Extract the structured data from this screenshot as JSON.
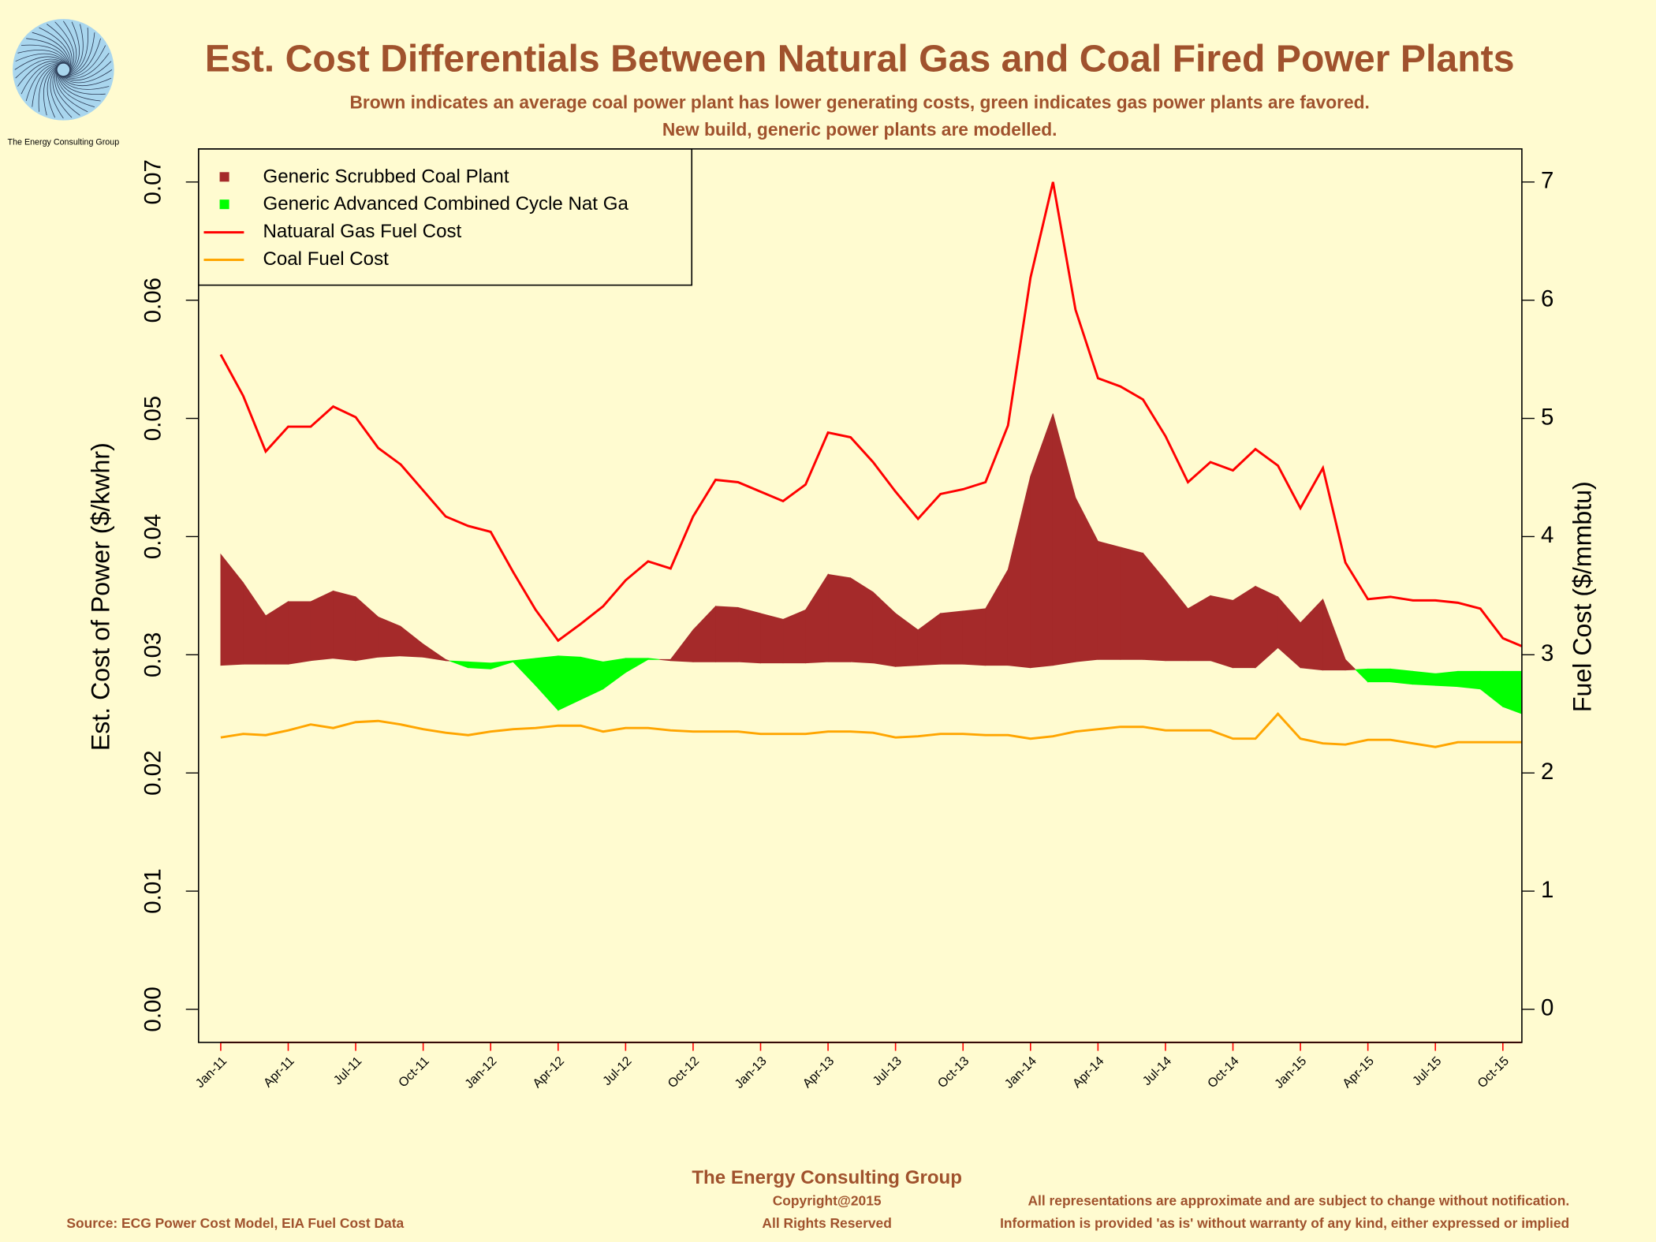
{
  "logo": {
    "text": "The Energy Consulting Group"
  },
  "chart_data": {
    "type": "area-difference",
    "title": "Est. Cost Differentials Between Natural Gas and Coal Fired Power Plants",
    "subtitle": [
      "Brown indicates an average coal power plant has lower generating costs, green indicates gas power plants are favored.",
      "New build, generic power plants are modelled."
    ],
    "ylabel": "Est. Cost of Power ($/kwhr)",
    "y2label": "Fuel Cost ($/mmbtu)",
    "legend": "topleft",
    "categories": [
      "Jan-11",
      null,
      null,
      "Apr-11",
      null,
      null,
      "Jul-11",
      null,
      null,
      "Oct-11",
      null,
      null,
      "Jan-12",
      null,
      null,
      "Apr-12",
      null,
      null,
      "Jul-12",
      null,
      null,
      "Oct-12",
      null,
      null,
      "Jan-13",
      null,
      null,
      "Apr-13",
      null,
      null,
      "Jul-13",
      null,
      null,
      "Oct-13",
      null,
      null,
      "Jan-14",
      null,
      null,
      "Apr-14",
      null,
      null,
      "Jul-14",
      null,
      null,
      "Oct-14",
      null,
      null,
      "Jan-15",
      null,
      null,
      "Apr-15",
      null,
      null,
      "Jul-15",
      null,
      null,
      "Oct-15",
      null
    ],
    "ylim": [
      -0.0028,
      0.0728
    ],
    "yticks": [
      {
        "value": 0,
        "label": "0.00"
      },
      0.01,
      0.02,
      0.03,
      0.04,
      0.05,
      0.06,
      0.07
    ],
    "y2lim": [
      -0.28,
      7.28
    ],
    "y2ticks": [
      0,
      1,
      2,
      3,
      4,
      5,
      6,
      7
    ],
    "series": [
      {
        "name": "Generic Scrubbed Coal Plant",
        "color": "#a52a2a",
        "values": [
          0.0291,
          0.0292,
          0.0292,
          0.0292,
          0.0295,
          0.0297,
          0.0295,
          0.0298,
          0.0299,
          0.0298,
          0.0295,
          0.0294,
          0.0293,
          0.0295,
          0.0297,
          0.0299,
          0.0298,
          0.0294,
          0.0297,
          0.0297,
          0.0295,
          0.0294,
          0.0294,
          0.0294,
          0.0293,
          0.0293,
          0.0293,
          0.0294,
          0.0294,
          0.0293,
          0.029,
          0.0291,
          0.0292,
          0.0292,
          0.0291,
          0.0291,
          0.0289,
          0.0291,
          0.0294,
          0.0296,
          0.0296,
          0.0296,
          0.0295,
          0.0295,
          0.0295,
          0.0289,
          0.0289,
          0.0306,
          0.0289,
          0.0287,
          0.0287,
          0.0288,
          0.0288,
          0.0286,
          0.0284,
          0.0286,
          0.0286,
          0.0286,
          0.0286
        ]
      },
      {
        "name": "Generic Advanced Combined Cycle Nat Ga",
        "color": "#00ff00",
        "values": [
          0.0385,
          0.0361,
          0.0333,
          0.0345,
          0.0345,
          0.0354,
          0.0349,
          0.0332,
          0.0324,
          0.0309,
          0.0296,
          0.0289,
          0.0288,
          0.0294,
          0.0274,
          0.0253,
          0.0262,
          0.0271,
          0.0285,
          0.0296,
          0.0296,
          0.0321,
          0.0341,
          0.034,
          0.0335,
          0.033,
          0.0338,
          0.0368,
          0.0365,
          0.0353,
          0.0335,
          0.0321,
          0.0335,
          0.0337,
          0.0339,
          0.0372,
          0.0451,
          0.0504,
          0.0433,
          0.0396,
          0.0391,
          0.0386,
          0.0363,
          0.0339,
          0.035,
          0.0346,
          0.0358,
          0.0349,
          0.0327,
          0.0347,
          0.0296,
          0.0277,
          0.0277,
          0.0275,
          0.0274,
          0.0273,
          0.0271,
          0.0256,
          0.0249
        ]
      },
      {
        "name": "Natuaral Gas Fuel Cost",
        "color": "#ff0000",
        "axis": "y2",
        "values": [
          5.54,
          5.19,
          4.72,
          4.93,
          4.93,
          5.1,
          5.01,
          4.75,
          4.61,
          4.39,
          4.17,
          4.09,
          4.04,
          3.7,
          3.38,
          3.12,
          3.26,
          3.41,
          3.63,
          3.79,
          3.73,
          4.17,
          4.48,
          4.46,
          4.38,
          4.3,
          4.44,
          4.88,
          4.84,
          4.63,
          4.38,
          4.15,
          4.36,
          4.4,
          4.46,
          4.94,
          6.19,
          7.0,
          5.92,
          5.34,
          5.27,
          5.16,
          4.85,
          4.46,
          4.63,
          4.56,
          4.74,
          4.6,
          4.24,
          4.58,
          3.78,
          3.47,
          3.49,
          3.46,
          3.46,
          3.44,
          3.39,
          3.14,
          3.06
        ]
      },
      {
        "name": "Coal Fuel Cost",
        "color": "#ffa500",
        "axis": "y2",
        "values": [
          2.3,
          2.33,
          2.32,
          2.36,
          2.41,
          2.38,
          2.43,
          2.44,
          2.41,
          2.37,
          2.34,
          2.32,
          2.35,
          2.37,
          2.38,
          2.4,
          2.4,
          2.35,
          2.38,
          2.38,
          2.36,
          2.35,
          2.35,
          2.35,
          2.33,
          2.33,
          2.33,
          2.35,
          2.35,
          2.34,
          2.3,
          2.31,
          2.33,
          2.33,
          2.32,
          2.32,
          2.29,
          2.31,
          2.35,
          2.37,
          2.39,
          2.39,
          2.36,
          2.36,
          2.36,
          2.29,
          2.29,
          2.5,
          2.29,
          2.25,
          2.24,
          2.28,
          2.28,
          2.25,
          2.22,
          2.26,
          2.26,
          2.26,
          2.26
        ]
      }
    ]
  },
  "footer": {
    "org": "The Energy Consulting Group",
    "copyright": "Copyright@2015",
    "rights": "All Rights Reserved",
    "source": "Source: ECG Power Cost Model, EIA Fuel Cost Data",
    "disclaimer": [
      "All representations are approximate and are subject to change without notification.",
      "Information is provided 'as is' without warranty of any kind, either expressed or implied"
    ]
  }
}
